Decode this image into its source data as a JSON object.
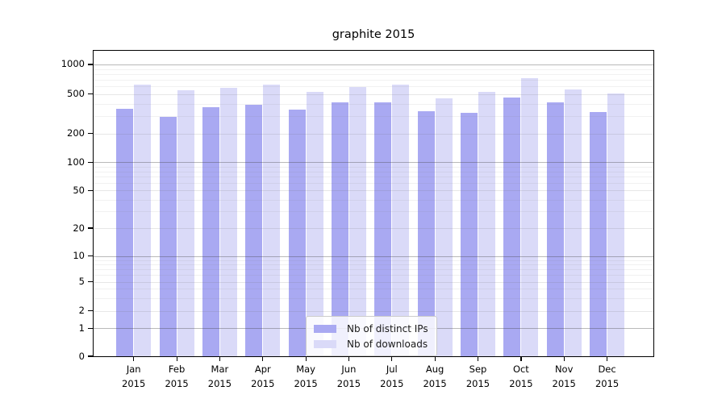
{
  "chart_data": {
    "type": "bar",
    "title": "graphite 2015",
    "year": "2015",
    "months": [
      "Jan",
      "Feb",
      "Mar",
      "Apr",
      "May",
      "Jun",
      "Jul",
      "Aug",
      "Sep",
      "Oct",
      "Nov",
      "Dec"
    ],
    "categories": [
      "Jan 2015",
      "Feb 2015",
      "Mar 2015",
      "Apr 2015",
      "May 2015",
      "Jun 2015",
      "Jul 2015",
      "Aug 2015",
      "Sep 2015",
      "Oct 2015",
      "Nov 2015",
      "Dec 2015"
    ],
    "series": [
      {
        "name": "Nb of distinct IPs",
        "color": "#a9a9f2",
        "values": [
          355,
          295,
          370,
          390,
          350,
          415,
          415,
          335,
          325,
          460,
          415,
          330
        ]
      },
      {
        "name": "Nb of downloads",
        "color": "#dadaf8",
        "values": [
          625,
          550,
          580,
          630,
          525,
          585,
          630,
          455,
          525,
          720,
          560,
          505
        ]
      }
    ],
    "yscale": "symlog",
    "yticks": [
      0,
      1,
      2,
      5,
      10,
      20,
      50,
      100,
      200,
      500,
      1000
    ],
    "ylim": [
      0,
      1400
    ],
    "xlabel": "",
    "ylabel": "",
    "grid": true,
    "legend_position": "lower center",
    "colors": {
      "axis": "#000000",
      "major_gridline": "#b3b3b3",
      "minor_gridline": "#e9e9e9",
      "background": "#ffffff",
      "legend_border": "#cccccc"
    }
  }
}
